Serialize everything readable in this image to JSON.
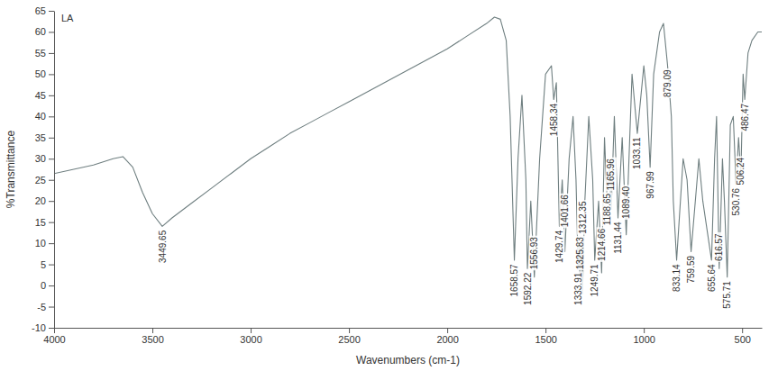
{
  "chart_data": {
    "type": "line",
    "title": "LA",
    "x_label": "Wavenumbers (cm-1)",
    "y_label": "%Transmittance",
    "color": "#6f7f80",
    "xlim": [
      4000,
      400
    ],
    "xticks": [
      4000,
      3500,
      3000,
      2500,
      2000,
      1500,
      1000,
      500
    ],
    "ylim": [
      -10,
      65
    ],
    "yticks": [
      -10,
      -5,
      0,
      5,
      10,
      15,
      20,
      25,
      30,
      35,
      40,
      45,
      50,
      55,
      60,
      65
    ],
    "grid": false,
    "x": [
      4000,
      3900,
      3800,
      3700,
      3650,
      3600,
      3550,
      3500,
      3449.65,
      3400,
      3300,
      3200,
      3100,
      3000,
      2900,
      2800,
      2700,
      2600,
      2500,
      2400,
      2300,
      2200,
      2100,
      2000,
      1900,
      1800,
      1760,
      1730,
      1700,
      1680,
      1658.57,
      1640,
      1620,
      1600,
      1592.22,
      1575,
      1556.93,
      1530,
      1500,
      1470,
      1458.34,
      1445,
      1429.74,
      1415,
      1401.66,
      1380,
      1360,
      1345,
      1333.91,
      1328,
      1325.83,
      1318,
      1312.35,
      1300,
      1280,
      1260,
      1249.71,
      1230,
      1214.66,
      1200,
      1188.65,
      1175,
      1165.96,
      1150,
      1131.44,
      1110,
      1089.4,
      1060,
      1033.11,
      1000,
      985,
      967.99,
      950,
      920,
      900,
      879.09,
      860,
      850,
      833.14,
      800,
      780,
      759.59,
      720,
      700,
      655.64,
      640,
      630,
      616.57,
      600,
      590,
      575.71,
      560,
      545,
      530.76,
      518,
      506.24,
      495,
      486.47,
      470,
      450,
      420,
      400
    ],
    "values": [
      26.5,
      27.5,
      28.5,
      30,
      30.5,
      28,
      22,
      17,
      14,
      16,
      19.5,
      23,
      26.5,
      30,
      33,
      36,
      38.5,
      41,
      43.5,
      46,
      48.5,
      51,
      53.5,
      56,
      59,
      62,
      63.5,
      63,
      58,
      40,
      6,
      30,
      45,
      25,
      4,
      20,
      2,
      30,
      50,
      52,
      44,
      48,
      14,
      25,
      8,
      30,
      40,
      25,
      4,
      10,
      2,
      10,
      -2,
      20,
      40,
      25,
      6,
      20,
      3,
      35,
      22,
      28,
      18,
      40,
      16,
      35,
      12,
      50,
      36,
      52,
      45,
      28,
      50,
      60,
      62,
      52,
      40,
      20,
      6,
      30,
      25,
      8,
      30,
      20,
      6,
      30,
      40,
      4,
      30,
      20,
      2,
      38,
      40,
      24,
      35,
      26,
      50,
      44,
      55,
      58,
      60,
      60
    ],
    "annotations": [
      {
        "text": "3449.65",
        "x": 3449.65
      },
      {
        "text": "1658.57",
        "x": 1658.57
      },
      {
        "text": "1592.22",
        "x": 1592.22
      },
      {
        "text": "1556.93",
        "x": 1556.93
      },
      {
        "text": "1458.34",
        "x": 1458.34
      },
      {
        "text": "1429.74",
        "x": 1429.74
      },
      {
        "text": "1401.66",
        "x": 1401.66
      },
      {
        "text": "1333.91",
        "x": 1333.91
      },
      {
        "text": "1325.83",
        "x": 1325.83
      },
      {
        "text": "1312.35",
        "x": 1312.35
      },
      {
        "text": "1249.71",
        "x": 1249.71
      },
      {
        "text": "1214.66",
        "x": 1214.66
      },
      {
        "text": "1188.65",
        "x": 1188.65
      },
      {
        "text": "1165.96",
        "x": 1165.96
      },
      {
        "text": "1131.44",
        "x": 1131.44
      },
      {
        "text": "1089.40",
        "x": 1089.4
      },
      {
        "text": "1033.11",
        "x": 1033.11
      },
      {
        "text": "967.99",
        "x": 967.99
      },
      {
        "text": "879.09",
        "x": 879.09
      },
      {
        "text": "833.14",
        "x": 833.14
      },
      {
        "text": "759.59",
        "x": 759.59
      },
      {
        "text": "655.64",
        "x": 655.64
      },
      {
        "text": "616.57",
        "x": 616.57
      },
      {
        "text": "575.71",
        "x": 575.71
      },
      {
        "text": "530.76",
        "x": 530.76
      },
      {
        "text": "506.24",
        "x": 506.24
      },
      {
        "text": "486.47",
        "x": 486.47
      }
    ]
  }
}
